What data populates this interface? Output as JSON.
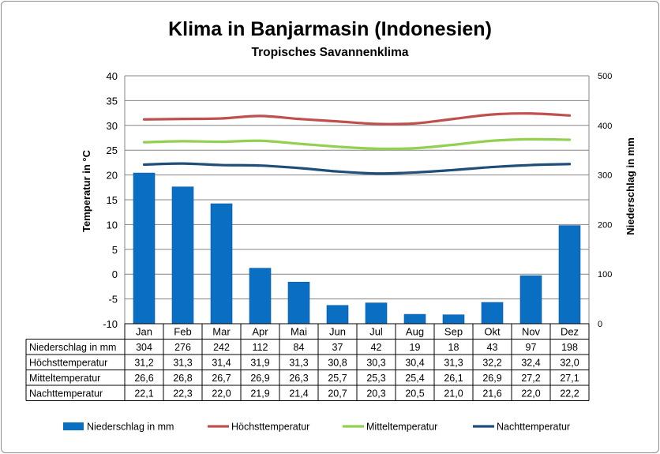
{
  "chart_data": {
    "type": "bar+line",
    "title": "Klima in Banjarmasin (Indonesien)",
    "subtitle": "Tropisches Savannenklima",
    "ylabel_left": "Temperatur in °C",
    "ylabel_right": "Niederschlag in mm",
    "ylim_left": [
      -10,
      40
    ],
    "ylim_right": [
      0,
      500
    ],
    "yticks_left": [
      -10,
      -5,
      0,
      5,
      10,
      15,
      20,
      25,
      30,
      35,
      40
    ],
    "yticks_right": [
      0,
      100,
      200,
      300,
      400,
      500
    ],
    "grid": true,
    "legend_position": "bottom",
    "categories": [
      "Jan",
      "Feb",
      "Mar",
      "Apr",
      "Mai",
      "Jun",
      "Jul",
      "Aug",
      "Sep",
      "Okt",
      "Nov",
      "Dez"
    ],
    "series": [
      {
        "name": "Niederschlag in mm",
        "kind": "bar",
        "axis": "right",
        "color": "#0a6fc2",
        "values": [
          304,
          276,
          242,
          112,
          84,
          37,
          42,
          19,
          18,
          43,
          97,
          198
        ],
        "display": [
          "304",
          "276",
          "242",
          "112",
          "84",
          "37",
          "42",
          "19",
          "18",
          "43",
          "97",
          "198"
        ]
      },
      {
        "name": "Höchsttemperatur",
        "kind": "line",
        "axis": "left",
        "color": "#c0504d",
        "values": [
          31.2,
          31.3,
          31.4,
          31.9,
          31.3,
          30.8,
          30.3,
          30.4,
          31.3,
          32.2,
          32.4,
          32.0
        ],
        "display": [
          "31,2",
          "31,3",
          "31,4",
          "31,9",
          "31,3",
          "30,8",
          "30,3",
          "30,4",
          "31,3",
          "32,2",
          "32,4",
          "32,0"
        ]
      },
      {
        "name": "Mitteltemperatur",
        "kind": "line",
        "axis": "left",
        "color": "#92d050",
        "values": [
          26.6,
          26.8,
          26.7,
          26.9,
          26.3,
          25.7,
          25.3,
          25.4,
          26.1,
          26.9,
          27.2,
          27.1
        ],
        "display": [
          "26,6",
          "26,8",
          "26,7",
          "26,9",
          "26,3",
          "25,7",
          "25,3",
          "25,4",
          "26,1",
          "26,9",
          "27,2",
          "27,1"
        ]
      },
      {
        "name": "Nachttemperatur",
        "kind": "line",
        "axis": "left",
        "color": "#1f4e79",
        "values": [
          22.1,
          22.3,
          22.0,
          21.9,
          21.4,
          20.7,
          20.3,
          20.5,
          21.0,
          21.6,
          22.0,
          22.2
        ],
        "display": [
          "22,1",
          "22,3",
          "22,0",
          "21,9",
          "21,4",
          "20,7",
          "20,3",
          "20,5",
          "21,0",
          "21,6",
          "22,0",
          "22,2"
        ]
      }
    ]
  }
}
